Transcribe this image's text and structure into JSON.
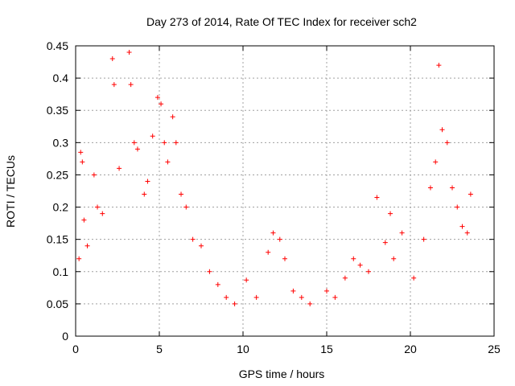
{
  "chart_data": {
    "type": "scatter",
    "title": "Day 273 of 2014, Rate Of TEC Index for receiver sch2",
    "xlabel": "GPS time / hours",
    "ylabel": "ROTI / TECUs",
    "xlim": [
      0,
      25
    ],
    "ylim": [
      0,
      0.45
    ],
    "xticks": [
      0,
      5,
      10,
      15,
      20,
      25
    ],
    "yticks": [
      0,
      0.05,
      0.1,
      0.15,
      0.2,
      0.25,
      0.3,
      0.35,
      0.4,
      0.45
    ],
    "grid": true,
    "marker": "+",
    "marker_color": "#ff0000",
    "series": [
      {
        "name": "ROTI",
        "x": [
          0.2,
          0.3,
          0.4,
          0.5,
          0.7,
          1.1,
          1.3,
          1.6,
          2.2,
          2.3,
          2.6,
          3.2,
          3.3,
          3.5,
          3.7,
          4.1,
          4.3,
          4.6,
          4.9,
          5.1,
          5.3,
          5.5,
          5.8,
          6.0,
          6.3,
          6.6,
          7.0,
          7.5,
          8.0,
          8.5,
          9.0,
          9.5,
          10.2,
          10.8,
          11.5,
          11.8,
          12.2,
          12.5,
          13.0,
          13.5,
          14.0,
          15.0,
          15.5,
          16.1,
          16.6,
          17.0,
          17.5,
          18.0,
          18.5,
          18.8,
          19.0,
          19.5,
          20.2,
          20.8,
          21.2,
          21.5,
          21.7,
          21.9,
          22.2,
          22.5,
          22.8,
          23.1,
          23.4,
          23.6
        ],
        "y": [
          0.12,
          0.285,
          0.27,
          0.18,
          0.14,
          0.25,
          0.2,
          0.19,
          0.43,
          0.39,
          0.26,
          0.44,
          0.39,
          0.3,
          0.29,
          0.22,
          0.24,
          0.31,
          0.37,
          0.36,
          0.3,
          0.27,
          0.34,
          0.3,
          0.22,
          0.2,
          0.15,
          0.14,
          0.1,
          0.08,
          0.06,
          0.05,
          0.087,
          0.06,
          0.13,
          0.16,
          0.15,
          0.12,
          0.07,
          0.06,
          0.05,
          0.07,
          0.06,
          0.09,
          0.12,
          0.11,
          0.1,
          0.215,
          0.145,
          0.19,
          0.12,
          0.16,
          0.09,
          0.15,
          0.23,
          0.27,
          0.42,
          0.32,
          0.3,
          0.23,
          0.2,
          0.17,
          0.16,
          0.22
        ]
      }
    ]
  }
}
